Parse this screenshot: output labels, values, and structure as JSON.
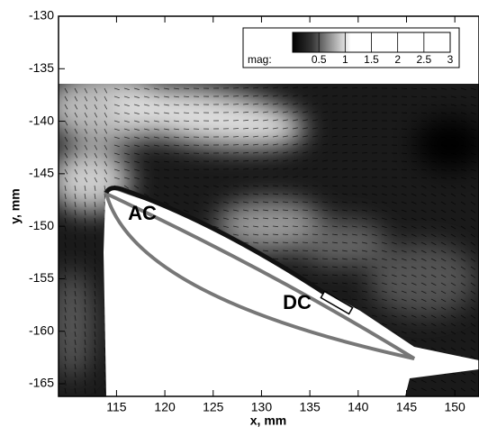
{
  "chart_data": {
    "type": "vector-field",
    "xlabel": "x, mm",
    "ylabel": "y, mm",
    "xlim": [
      109,
      152.5
    ],
    "ylim": [
      -166.2,
      -130
    ],
    "xticks": [
      115,
      120,
      125,
      130,
      135,
      140,
      145,
      150
    ],
    "yticks": [
      -165,
      -160,
      -155,
      -150,
      -145,
      -140,
      -135,
      -130
    ],
    "colorbar": {
      "label": "mag:",
      "lim": [
        0,
        3
      ],
      "ticks": [
        0.5,
        1,
        1.5,
        2,
        2.5,
        3
      ]
    },
    "annotations": [
      "AC",
      "DC"
    ]
  }
}
